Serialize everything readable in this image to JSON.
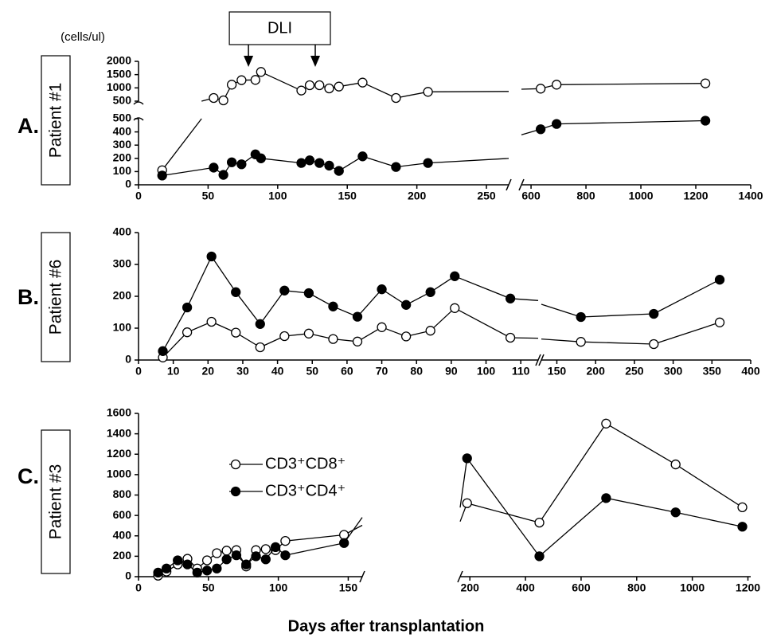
{
  "chart_data": [
    {
      "type": "line",
      "panel_label": "A.",
      "title": "Patient #1",
      "y_unit": "(cells/ul)",
      "annotation": {
        "text": "DLI",
        "x": [
          79,
          127
        ]
      },
      "x_segments": [
        {
          "xlim": [
            0,
            266
          ],
          "xticks": [
            0,
            50,
            100,
            150,
            200,
            250
          ]
        },
        {
          "xlim": [
            565,
            1400
          ],
          "xticks": [
            600,
            800,
            1000,
            1200,
            1400
          ]
        }
      ],
      "y_segments": [
        {
          "ylim": [
            0,
            500
          ],
          "yticks": [
            0,
            100,
            200,
            300,
            400,
            500
          ]
        },
        {
          "ylim": [
            500,
            2000
          ],
          "yticks": [
            500,
            1000,
            1500,
            2000
          ]
        }
      ],
      "series": [
        {
          "name": "CD3⁺CD8⁺",
          "color": "#000000",
          "marker": "open",
          "x": [
            17,
            54,
            61,
            67,
            74,
            84,
            88,
            117,
            123,
            130,
            137,
            144,
            161,
            185,
            208,
            635,
            693,
            1235
          ],
          "values": [
            110,
            620,
            530,
            1120,
            1290,
            1300,
            1600,
            900,
            1100,
            1100,
            980,
            1050,
            1200,
            620,
            850,
            970,
            1120,
            1170
          ]
        },
        {
          "name": "CD3⁺CD4⁺",
          "color": "#000000",
          "marker": "filled",
          "x": [
            17,
            54,
            61,
            67,
            74,
            84,
            88,
            117,
            123,
            130,
            137,
            144,
            161,
            185,
            208,
            635,
            693,
            1235
          ],
          "values": [
            70,
            130,
            75,
            170,
            155,
            230,
            200,
            165,
            185,
            165,
            145,
            105,
            215,
            135,
            165,
            420,
            460,
            485
          ]
        }
      ]
    },
    {
      "type": "line",
      "panel_label": "B.",
      "title": "Patient #6",
      "x_segments": [
        {
          "xlim": [
            0,
            115
          ],
          "xticks": [
            0,
            10,
            20,
            30,
            40,
            50,
            60,
            70,
            80,
            90,
            100,
            110
          ]
        },
        {
          "xlim": [
            130,
            400
          ],
          "xticks": [
            150,
            200,
            250,
            300,
            350,
            400
          ]
        }
      ],
      "y_segments": [
        {
          "ylim": [
            0,
            400
          ],
          "yticks": [
            0,
            100,
            200,
            300,
            400
          ]
        }
      ],
      "series": [
        {
          "name": "CD3⁺CD8⁺",
          "color": "#000000",
          "marker": "open",
          "x": [
            7,
            14,
            21,
            28,
            35,
            42,
            49,
            56,
            63,
            70,
            77,
            84,
            91,
            107,
            181,
            275,
            360
          ],
          "values": [
            8,
            87,
            120,
            86,
            40,
            75,
            83,
            66,
            58,
            103,
            74,
            92,
            163,
            70,
            57,
            50,
            118
          ]
        },
        {
          "name": "CD3⁺CD4⁺",
          "color": "#000000",
          "marker": "filled",
          "x": [
            7,
            14,
            21,
            28,
            35,
            42,
            49,
            56,
            63,
            70,
            77,
            84,
            91,
            107,
            181,
            275,
            360
          ],
          "values": [
            28,
            165,
            325,
            213,
            113,
            218,
            210,
            168,
            136,
            222,
            173,
            213,
            263,
            193,
            135,
            145,
            252
          ]
        }
      ]
    },
    {
      "type": "line",
      "panel_label": "C.",
      "title": "Patient #3",
      "legend": true,
      "xlabel": "Days after transplantation",
      "x_segments": [
        {
          "xlim": [
            0,
            160
          ],
          "xticks": [
            0,
            50,
            100,
            150
          ]
        },
        {
          "xlim": [
            165,
            1210
          ],
          "xticks": [
            200,
            400,
            600,
            800,
            1000,
            1200
          ]
        }
      ],
      "y_segments": [
        {
          "ylim": [
            0,
            1600
          ],
          "yticks": [
            0,
            200,
            400,
            600,
            800,
            1000,
            1200,
            1400,
            1600
          ]
        }
      ],
      "series": [
        {
          "name": "CD3⁺CD8⁺",
          "color": "#000000",
          "marker": "open",
          "x": [
            14,
            20,
            28,
            35,
            42,
            49,
            56,
            63,
            70,
            77,
            84,
            91,
            98,
            105,
            147,
            190,
            450,
            690,
            940,
            1180
          ],
          "values": [
            10,
            50,
            120,
            175,
            80,
            160,
            230,
            255,
            260,
            100,
            260,
            270,
            260,
            350,
            410,
            720,
            530,
            1500,
            1100,
            680
          ]
        },
        {
          "name": "CD3⁺CD4⁺",
          "color": "#000000",
          "marker": "filled",
          "x": [
            14,
            20,
            28,
            35,
            42,
            49,
            56,
            63,
            70,
            77,
            84,
            91,
            98,
            105,
            147,
            190,
            450,
            690,
            940,
            1180
          ],
          "values": [
            40,
            80,
            160,
            120,
            40,
            60,
            80,
            170,
            210,
            120,
            200,
            170,
            290,
            210,
            330,
            1160,
            200,
            770,
            630,
            490
          ]
        }
      ]
    }
  ]
}
